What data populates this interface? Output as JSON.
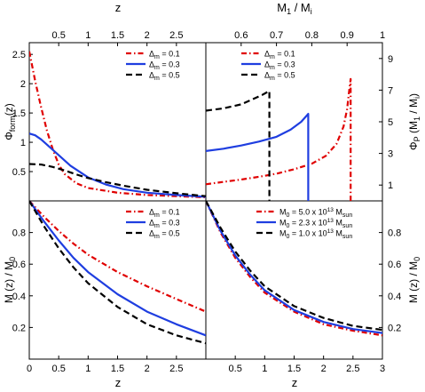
{
  "figure": {
    "top_axis_left_label": "z",
    "top_axis_right_label": "M",
    "top_axis_right_sub_num": "1",
    "top_axis_right_sep": " / M",
    "top_axis_right_sub_den": "i",
    "bottom_axis_label": "z"
  },
  "chart_data": [
    {
      "panel": "top-left",
      "type": "line",
      "title": "",
      "xlabel": "z",
      "xlabel_position": "top",
      "ylabel": "Φ_form(z)",
      "xlim": [
        0,
        3.0
      ],
      "ylim": [
        0,
        2.7
      ],
      "xticks": [
        "0.5",
        "1",
        "1.5",
        "2",
        "2.5"
      ],
      "yticks": [
        "0.5",
        "1",
        "1.5",
        "2",
        "2.5"
      ],
      "legend_position": "top-right",
      "series": [
        {
          "name": "Δm = 0.1",
          "legend_label": "Δ",
          "legend_sub": "m",
          "legend_value": " = 0.1",
          "style": "dash-dot",
          "color": "#e00000",
          "points": [
            [
              0,
              2.55
            ],
            [
              0.1,
              2.05
            ],
            [
              0.2,
              1.6
            ],
            [
              0.3,
              1.2
            ],
            [
              0.4,
              0.88
            ],
            [
              0.5,
              0.62
            ],
            [
              0.6,
              0.46
            ],
            [
              0.8,
              0.3
            ],
            [
              1.0,
              0.22
            ],
            [
              1.5,
              0.14
            ],
            [
              2.0,
              0.1
            ],
            [
              2.5,
              0.08
            ],
            [
              3.0,
              0.06
            ]
          ]
        },
        {
          "name": "Δm = 0.3",
          "legend_label": "Δ",
          "legend_sub": "m",
          "legend_value": " = 0.3",
          "style": "solid",
          "color": "#1f3ee0",
          "points": [
            [
              0,
              1.15
            ],
            [
              0.1,
              1.12
            ],
            [
              0.2,
              1.05
            ],
            [
              0.3,
              0.96
            ],
            [
              0.5,
              0.78
            ],
            [
              0.7,
              0.6
            ],
            [
              1.0,
              0.4
            ],
            [
              1.3,
              0.28
            ],
            [
              1.6,
              0.2
            ],
            [
              2.0,
              0.14
            ],
            [
              2.5,
              0.1
            ],
            [
              3.0,
              0.07
            ]
          ]
        },
        {
          "name": "Δm = 0.5",
          "legend_label": "Δ",
          "legend_sub": "m",
          "legend_value": " = 0.5",
          "style": "dashed",
          "color": "#000000",
          "points": [
            [
              0,
              0.63
            ],
            [
              0.2,
              0.62
            ],
            [
              0.4,
              0.58
            ],
            [
              0.6,
              0.52
            ],
            [
              0.8,
              0.45
            ],
            [
              1.0,
              0.39
            ],
            [
              1.3,
              0.32
            ],
            [
              1.6,
              0.26
            ],
            [
              2.0,
              0.19
            ],
            [
              2.5,
              0.13
            ],
            [
              3.0,
              0.08
            ]
          ]
        }
      ]
    },
    {
      "panel": "top-right",
      "type": "line",
      "title": "",
      "xlabel": "M1 / Mi",
      "xlabel_position": "top",
      "ylabel": "ΦP (M1 / Mi)",
      "ylabel_position": "right",
      "xlim": [
        0.5,
        1.0
      ],
      "ylim": [
        0,
        10
      ],
      "xticks": [
        "0.6",
        "0.7",
        "0.8",
        "0.9",
        "1"
      ],
      "yticks": [
        "1",
        "3",
        "5",
        "7",
        "9"
      ],
      "legend_position": "top-center",
      "series": [
        {
          "name": "Δm = 0.1",
          "legend_label": "Δ",
          "legend_sub": "m",
          "legend_value": " = 0.1",
          "style": "dash-dot",
          "color": "#e00000",
          "points": [
            [
              0.5,
              1.05
            ],
            [
              0.55,
              1.2
            ],
            [
              0.6,
              1.35
            ],
            [
              0.65,
              1.52
            ],
            [
              0.7,
              1.72
            ],
            [
              0.75,
              2.0
            ],
            [
              0.8,
              2.35
            ],
            [
              0.84,
              2.85
            ],
            [
              0.87,
              3.6
            ],
            [
              0.89,
              4.7
            ],
            [
              0.9,
              5.8
            ],
            [
              0.905,
              6.8
            ],
            [
              0.91,
              7.7
            ],
            [
              0.91,
              0
            ]
          ]
        },
        {
          "name": "Δm = 0.3",
          "legend_label": "Δ",
          "legend_sub": "m",
          "legend_value": " = 0.3",
          "style": "solid",
          "color": "#1f3ee0",
          "points": [
            [
              0.5,
              3.15
            ],
            [
              0.55,
              3.3
            ],
            [
              0.6,
              3.5
            ],
            [
              0.65,
              3.75
            ],
            [
              0.7,
              4.05
            ],
            [
              0.74,
              4.5
            ],
            [
              0.77,
              5.0
            ],
            [
              0.79,
              5.5
            ],
            [
              0.79,
              0
            ]
          ]
        },
        {
          "name": "Δm = 0.5",
          "legend_label": "Δ",
          "legend_sub": "m",
          "legend_value": " = 0.5",
          "style": "dashed",
          "color": "#000000",
          "points": [
            [
              0.5,
              5.7
            ],
            [
              0.55,
              5.85
            ],
            [
              0.6,
              6.1
            ],
            [
              0.63,
              6.4
            ],
            [
              0.66,
              6.7
            ],
            [
              0.68,
              6.95
            ],
            [
              0.68,
              0
            ]
          ]
        }
      ]
    },
    {
      "panel": "bottom-left",
      "type": "line",
      "title": "",
      "xlabel": "z",
      "ylabel": "M(z) / M0",
      "xlim": [
        0,
        3.0
      ],
      "ylim": [
        0,
        1.0
      ],
      "xticks": [
        "0",
        "0.5",
        "1",
        "1.5",
        "2",
        "2.5"
      ],
      "yticks": [
        "0.2",
        "0.4",
        "0.6",
        "0.8"
      ],
      "legend_position": "top-right",
      "series": [
        {
          "name": "Δm = 0.1",
          "legend_label": "Δ",
          "legend_sub": "m",
          "legend_value": " = 0.1",
          "style": "dash-dot",
          "color": "#e00000",
          "points": [
            [
              0,
              1.0
            ],
            [
              0.25,
              0.9
            ],
            [
              0.5,
              0.81
            ],
            [
              0.75,
              0.73
            ],
            [
              1.0,
              0.66
            ],
            [
              1.5,
              0.55
            ],
            [
              2.0,
              0.46
            ],
            [
              2.5,
              0.38
            ],
            [
              3.0,
              0.3
            ]
          ]
        },
        {
          "name": "Δm = 0.3",
          "legend_label": "Δ",
          "legend_sub": "m",
          "legend_value": " = 0.3",
          "style": "solid",
          "color": "#1f3ee0",
          "points": [
            [
              0,
              1.0
            ],
            [
              0.25,
              0.87
            ],
            [
              0.5,
              0.75
            ],
            [
              0.75,
              0.64
            ],
            [
              1.0,
              0.55
            ],
            [
              1.5,
              0.41
            ],
            [
              2.0,
              0.3
            ],
            [
              2.5,
              0.22
            ],
            [
              3.0,
              0.15
            ]
          ]
        },
        {
          "name": "Δm = 0.5",
          "legend_label": "Δ",
          "legend_sub": "m",
          "legend_value": " = 0.5",
          "style": "dashed",
          "color": "#000000",
          "points": [
            [
              0,
              1.0
            ],
            [
              0.25,
              0.84
            ],
            [
              0.5,
              0.7
            ],
            [
              0.75,
              0.58
            ],
            [
              1.0,
              0.48
            ],
            [
              1.5,
              0.33
            ],
            [
              2.0,
              0.22
            ],
            [
              2.5,
              0.15
            ],
            [
              3.0,
              0.1
            ]
          ]
        }
      ]
    },
    {
      "panel": "bottom-right",
      "type": "line",
      "title": "",
      "xlabel": "z",
      "ylabel": "M (z) / M0",
      "ylabel_position": "right",
      "xlim": [
        0,
        3.0
      ],
      "ylim": [
        0,
        1.0
      ],
      "xticks": [
        "0.5",
        "1",
        "1.5",
        "2",
        "2.5",
        "3"
      ],
      "yticks": [
        "0.2",
        "0.4",
        "0.6",
        "0.8"
      ],
      "legend_position": "top-right",
      "series": [
        {
          "name": "M0 = 5.0 x 10^13 Msun",
          "legend_label": "M",
          "legend_sub": "0",
          "legend_value": " = 5.0 x 10",
          "legend_sup": "13",
          "legend_tail": " M",
          "legend_tail_sub": "sun",
          "style": "dash-dot",
          "color": "#e00000",
          "points": [
            [
              0,
              1.0
            ],
            [
              0.25,
              0.8
            ],
            [
              0.5,
              0.64
            ],
            [
              0.75,
              0.52
            ],
            [
              1.0,
              0.42
            ],
            [
              1.5,
              0.3
            ],
            [
              2.0,
              0.22
            ],
            [
              2.5,
              0.18
            ],
            [
              3.0,
              0.15
            ]
          ]
        },
        {
          "name": "M0 = 2.3 x 10^13 Msun",
          "legend_label": "M",
          "legend_sub": "0",
          "legend_value": " = 2.3 x 10",
          "legend_sup": "13",
          "legend_tail": " M",
          "legend_tail_sub": "sun",
          "style": "solid",
          "color": "#1f3ee0",
          "points": [
            [
              0,
              1.0
            ],
            [
              0.25,
              0.81
            ],
            [
              0.5,
              0.655
            ],
            [
              0.75,
              0.535
            ],
            [
              1.0,
              0.435
            ],
            [
              1.5,
              0.31
            ],
            [
              2.0,
              0.235
            ],
            [
              2.5,
              0.19
            ],
            [
              3.0,
              0.165
            ]
          ]
        },
        {
          "name": "M0 = 1.0 x 10^13 Msun",
          "legend_label": "M",
          "legend_sub": "0",
          "legend_value": " = 1.0 x 10",
          "legend_sup": "13",
          "legend_tail": " M",
          "legend_tail_sub": "sun",
          "style": "dashed",
          "color": "#000000",
          "points": [
            [
              0,
              1.0
            ],
            [
              0.25,
              0.83
            ],
            [
              0.5,
              0.68
            ],
            [
              0.75,
              0.56
            ],
            [
              1.0,
              0.46
            ],
            [
              1.5,
              0.335
            ],
            [
              2.0,
              0.26
            ],
            [
              2.5,
              0.21
            ],
            [
              3.0,
              0.185
            ]
          ]
        }
      ]
    }
  ]
}
